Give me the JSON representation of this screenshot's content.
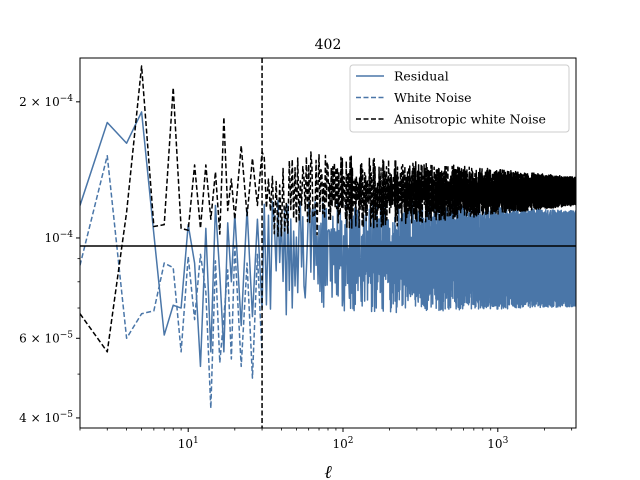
{
  "chart_data": {
    "type": "line",
    "title": "402",
    "xlabel": "ℓ",
    "ylabel": "",
    "xscale": "log",
    "yscale": "log",
    "xlim": [
      2,
      3200
    ],
    "ylim": [
      3.8e-05,
      0.00025
    ],
    "x_ticks": [
      {
        "value": 10,
        "base": "10",
        "exp": "1"
      },
      {
        "value": 100,
        "base": "10",
        "exp": "2"
      },
      {
        "value": 1000,
        "base": "10",
        "exp": "3"
      }
    ],
    "y_ticks": [
      {
        "value": 4e-05,
        "mant": "4 × 10",
        "exp": "−5"
      },
      {
        "value": 6e-05,
        "mant": "6 × 10",
        "exp": "−5"
      },
      {
        "value": 0.0001,
        "mant": "10",
        "exp": "−4"
      },
      {
        "value": 0.0002,
        "mant": "2 × 10",
        "exp": "−4"
      }
    ],
    "hline": 9.6e-05,
    "vline": 30,
    "legend_position": "top-right",
    "series": [
      {
        "name": "Residual",
        "color": "#4a76a8",
        "style": "solid",
        "points": [
          [
            2,
            0.000118
          ],
          [
            3,
            0.00018
          ],
          [
            4,
            0.000162
          ],
          [
            5,
            0.00019
          ],
          [
            6,
            0.000102
          ],
          [
            7,
            6.1e-05
          ],
          [
            8,
            7.1e-05
          ],
          [
            9,
            7e-05
          ],
          [
            10,
            0.000107
          ],
          [
            11,
            8.8e-05
          ],
          [
            12,
            5.2e-05
          ],
          [
            13,
            0.000105
          ],
          [
            14,
            5.6e-05
          ],
          [
            15,
            0.000118
          ],
          [
            16,
            8.3e-05
          ],
          [
            17,
            5.6e-05
          ],
          [
            18,
            0.000108
          ],
          [
            19,
            8e-05
          ],
          [
            20,
            0.000113
          ],
          [
            22,
            6.4e-05
          ],
          [
            24,
            0.000116
          ],
          [
            26,
            6.7e-05
          ],
          [
            28,
            0.00011
          ],
          [
            30,
            7e-05
          ]
        ],
        "band": {
          "start": 30,
          "end": 3200,
          "upper_start": 0.000108,
          "upper_end": 0.000107,
          "lower_start": 7.8e-05,
          "lower_end": 7.6e-05,
          "amplitude": 0.09
        }
      },
      {
        "name": "White Noise",
        "color": "#4a76a8",
        "style": "dashed",
        "points": [
          [
            2,
            8.7e-05
          ],
          [
            3,
            0.000152
          ],
          [
            4,
            6e-05
          ],
          [
            5,
            6.8e-05
          ],
          [
            6,
            6.9e-05
          ],
          [
            7,
            8.8e-05
          ],
          [
            8,
            8.6e-05
          ],
          [
            9,
            5.6e-05
          ],
          [
            10,
            9.1e-05
          ],
          [
            11,
            6.6e-05
          ],
          [
            12,
            9.2e-05
          ],
          [
            13,
            7.6e-05
          ],
          [
            14,
            4.2e-05
          ],
          [
            15,
            8.9e-05
          ],
          [
            16,
            5.3e-05
          ],
          [
            17,
            6.7e-05
          ],
          [
            18,
            8.5e-05
          ],
          [
            19,
            5.4e-05
          ],
          [
            20,
            9.6e-05
          ],
          [
            22,
            5.2e-05
          ],
          [
            24,
            8.8e-05
          ],
          [
            26,
            4.9e-05
          ],
          [
            28,
            9.2e-05
          ],
          [
            30,
            5.5e-05
          ]
        ]
      },
      {
        "name": "Anisotropic white Noise",
        "color": "#000000",
        "style": "dashed",
        "points": [
          [
            2,
            6.8e-05
          ],
          [
            3,
            5.6e-05
          ],
          [
            4,
            0.000114
          ],
          [
            5,
            0.00024
          ],
          [
            6,
            0.000106
          ],
          [
            7,
            0.000107
          ],
          [
            8,
            0.000215
          ],
          [
            9,
            0.000105
          ],
          [
            10,
            0.000104
          ],
          [
            11,
            0.000145
          ],
          [
            12,
            0.000105
          ],
          [
            13,
            0.000145
          ],
          [
            14,
            0.00011
          ],
          [
            15,
            0.00014
          ],
          [
            16,
            0.000102
          ],
          [
            17,
            0.000185
          ],
          [
            18,
            0.000115
          ],
          [
            19,
            0.000135
          ],
          [
            20,
            0.00011
          ],
          [
            22,
            0.00016
          ],
          [
            24,
            0.000112
          ],
          [
            26,
            0.00015
          ],
          [
            28,
            0.000118
          ],
          [
            30,
            0.000155
          ]
        ],
        "band": {
          "start": 30,
          "end": 3200,
          "upper_start": 0.000145,
          "upper_end": 0.00013,
          "lower_start": 0.000108,
          "lower_end": 0.000124,
          "amplitude": 0.06
        }
      }
    ]
  }
}
